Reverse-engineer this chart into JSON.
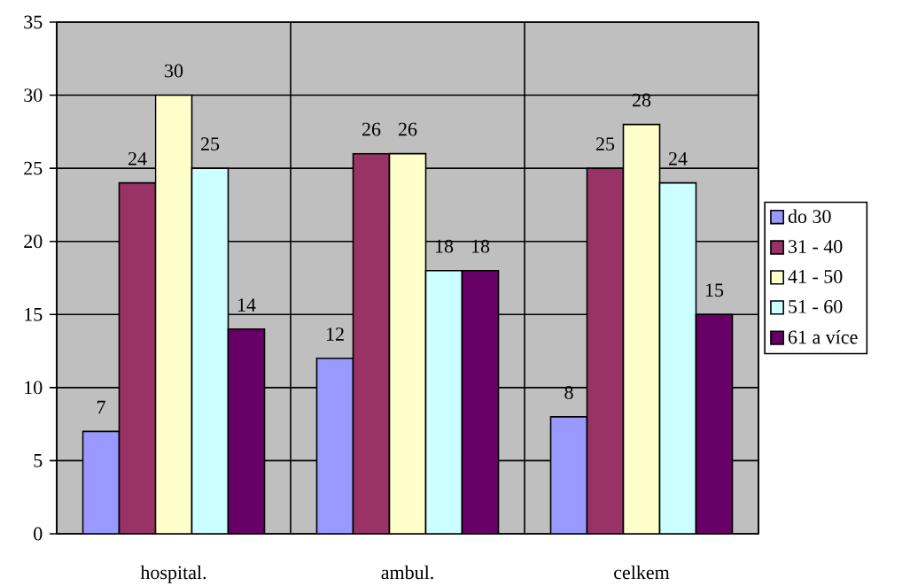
{
  "chart_data": {
    "type": "bar",
    "categories": [
      "hospital.",
      "ambul.",
      "celkem"
    ],
    "series": [
      {
        "name": "do 30",
        "color": "#9999ff",
        "values": [
          7,
          12,
          8
        ]
      },
      {
        "name": "31 - 40",
        "color": "#993366",
        "values": [
          24,
          26,
          25
        ]
      },
      {
        "name": "41 - 50",
        "color": "#ffffcc",
        "values": [
          30,
          26,
          28
        ]
      },
      {
        "name": "51 - 60",
        "color": "#ccffff",
        "values": [
          25,
          18,
          24
        ]
      },
      {
        "name": "61 a více",
        "color": "#660066",
        "values": [
          14,
          18,
          15
        ]
      }
    ],
    "ylim": [
      0,
      35
    ],
    "yticks": [
      0,
      5,
      10,
      15,
      20,
      25,
      30,
      35
    ],
    "grid": true,
    "legend": "right",
    "data_labels": true
  }
}
